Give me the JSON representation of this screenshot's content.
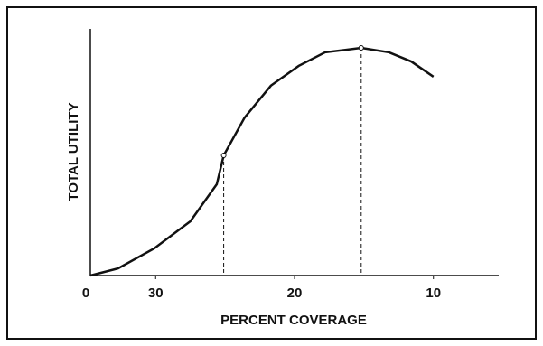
{
  "chart_data": {
    "type": "line",
    "x_label": "PERCENT COVERAGE",
    "y_label": "TOTAL UTILITY",
    "origin_label": "0",
    "x": [
      34.7,
      32.7,
      30.1,
      27.5,
      25.6,
      25.1,
      23.6,
      21.7,
      19.7,
      17.8,
      15.2,
      13.2,
      11.6,
      10.0
    ],
    "series": [
      {
        "color": "#111111",
        "values": [
          0,
          2.9,
          11,
          22,
          37,
          48.7,
          64,
          77,
          85,
          90.5,
          92.3,
          90.5,
          86.8,
          80.6
        ]
      }
    ],
    "markers": {
      "x": [
        25.1,
        15.2
      ],
      "y": [
        48.7,
        92.3
      ]
    },
    "xlim": [
      34.7,
      5.3
    ],
    "xticks": [
      30,
      20,
      10
    ],
    "ylim": [
      0,
      100
    ],
    "grid": false
  }
}
